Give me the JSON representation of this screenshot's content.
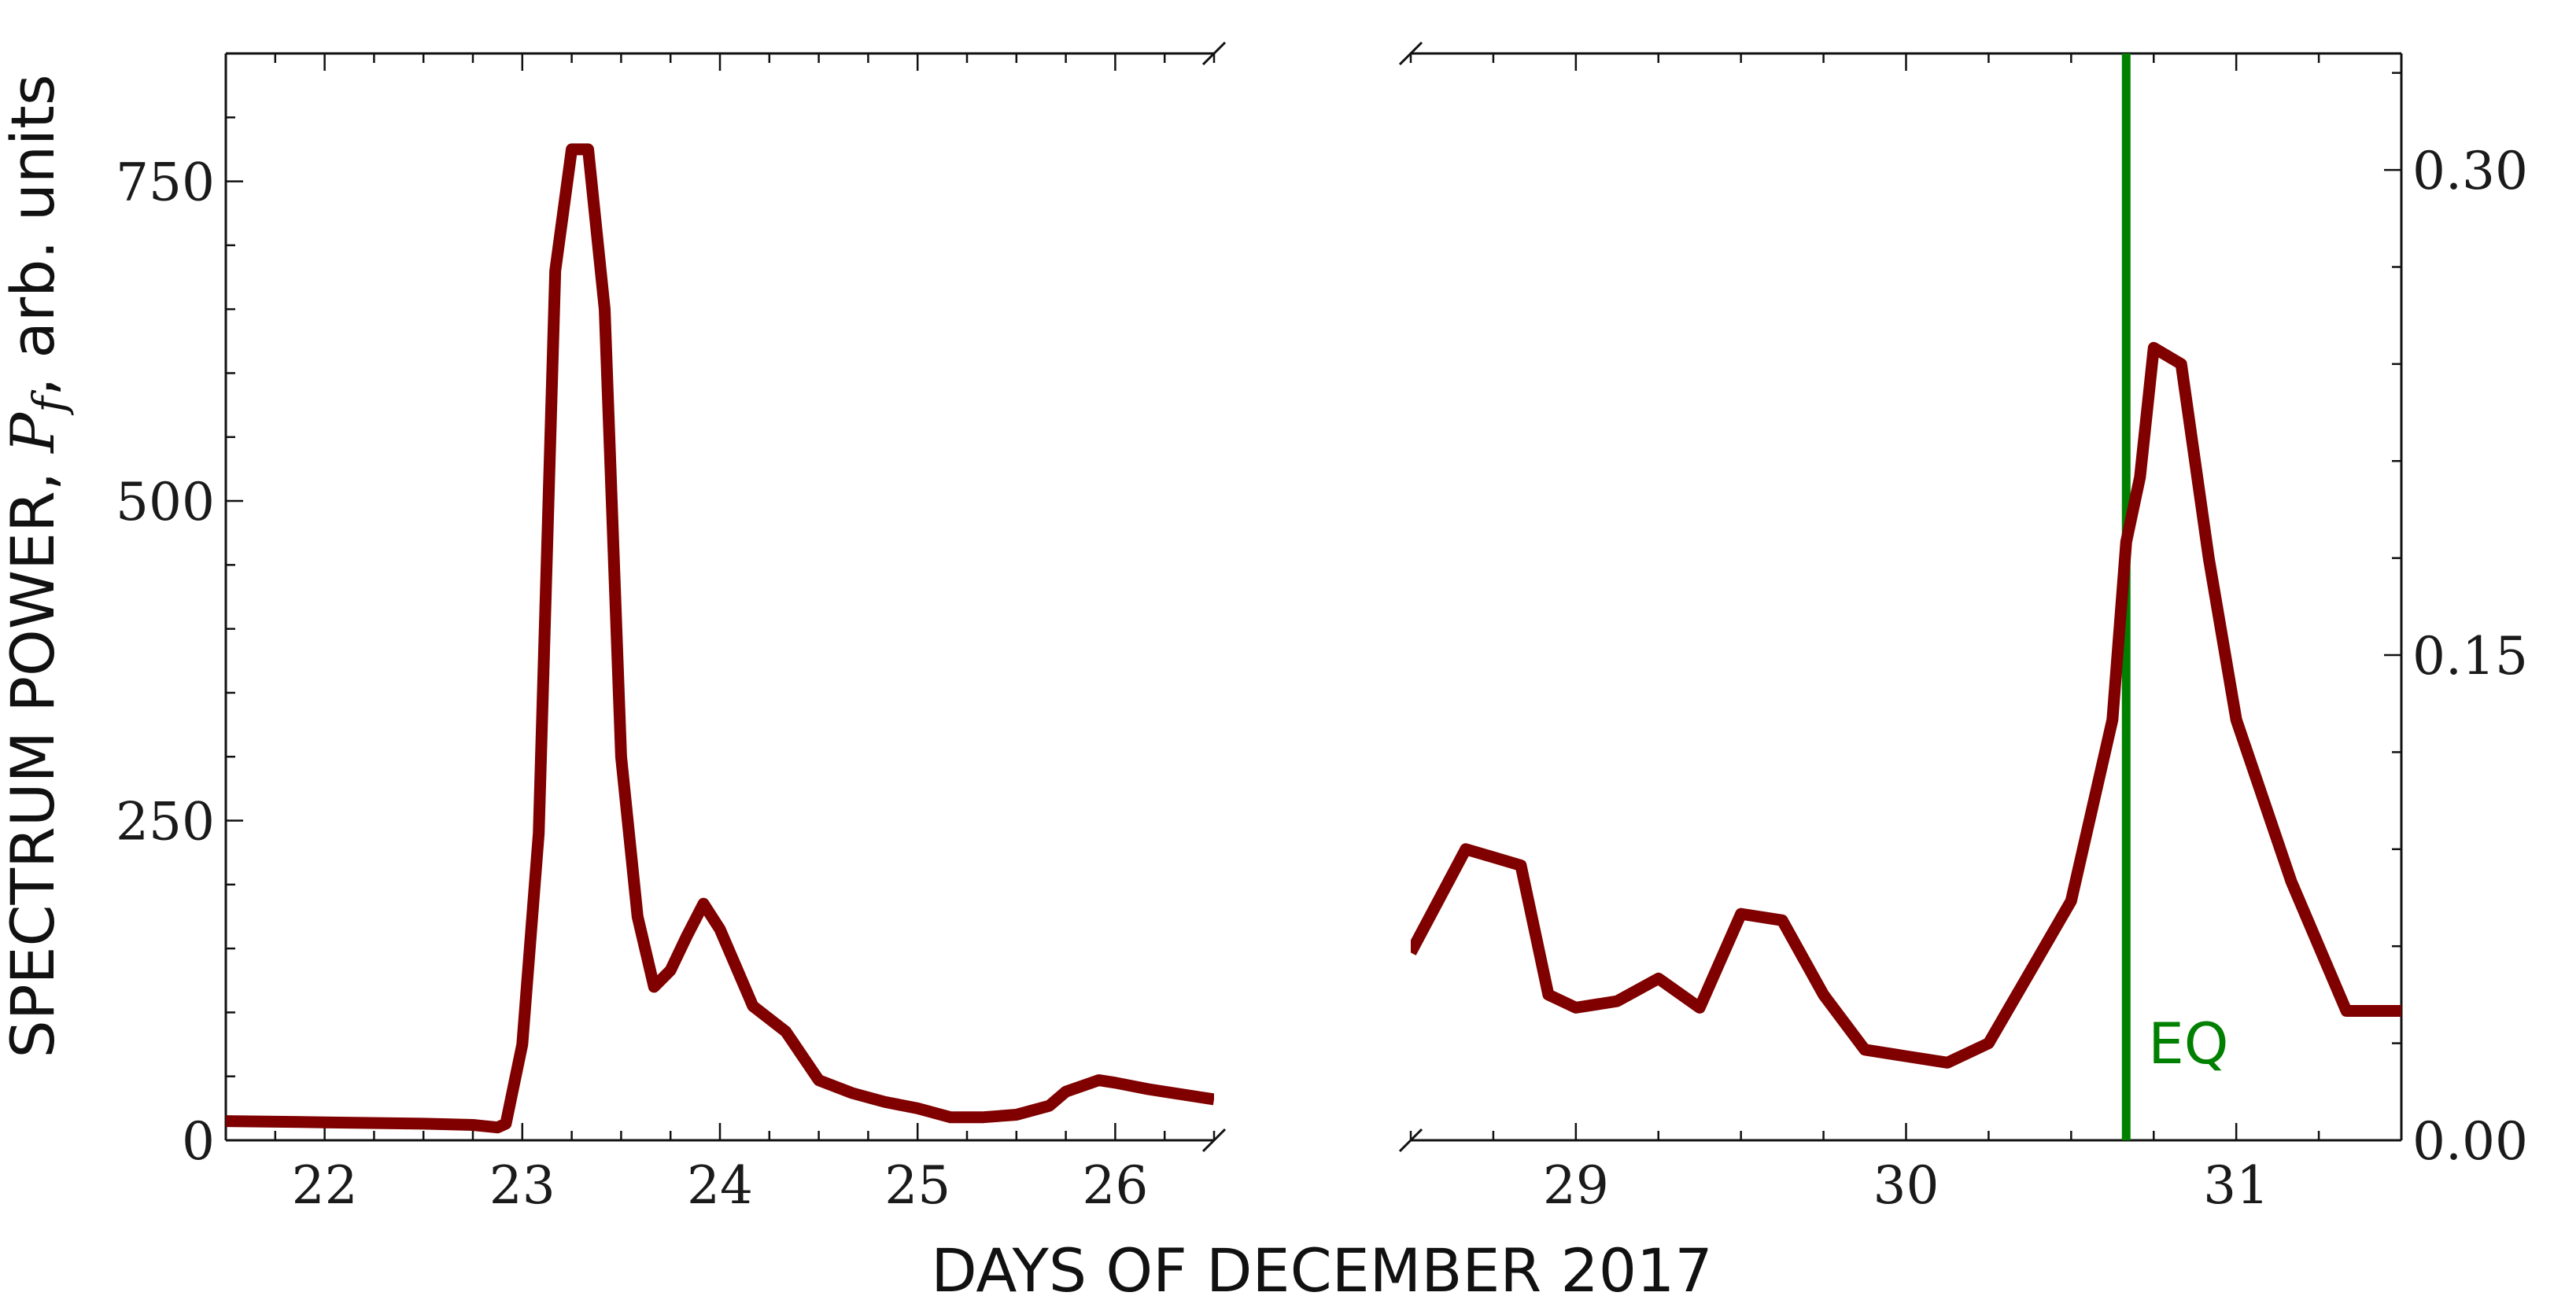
{
  "chart_data": {
    "type": "line",
    "xlabel": "DAYS OF DECEMBER 2017",
    "ylabel": {
      "prefix": "SPECTRUM POWER, ",
      "symbol": "P",
      "subscript": "f",
      "suffix": ", arb. units"
    },
    "line_color": "#800000",
    "annotation": {
      "label": "EQ",
      "x": "2017-12-30T16:00",
      "color": "#008000"
    },
    "panels": [
      {
        "name": "left",
        "y_axis_side": "left",
        "xlim": [
          "2017-12-21T12:00",
          "2017-12-26T12:00"
        ],
        "ylim": [
          0,
          850
        ],
        "x_ticks": [
          "22",
          "23",
          "24",
          "25",
          "26"
        ],
        "y_ticks": [
          "0",
          "250",
          "500",
          "750"
        ],
        "x": [
          "2017-12-21T12:00",
          "2017-12-22T00:00",
          "2017-12-22T12:00",
          "2017-12-22T18:00",
          "2017-12-22T21:00",
          "2017-12-22T22:00",
          "2017-12-23T00:00",
          "2017-12-23T02:00",
          "2017-12-23T04:00",
          "2017-12-23T06:00",
          "2017-12-23T08:00",
          "2017-12-23T10:00",
          "2017-12-23T12:00",
          "2017-12-23T14:00",
          "2017-12-23T16:00",
          "2017-12-23T18:00",
          "2017-12-23T20:00",
          "2017-12-23T22:00",
          "2017-12-24T00:00",
          "2017-12-24T04:00",
          "2017-12-24T08:00",
          "2017-12-24T12:00",
          "2017-12-24T16:00",
          "2017-12-24T20:00",
          "2017-12-25T00:00",
          "2017-12-25T04:00",
          "2017-12-25T08:00",
          "2017-12-25T12:00",
          "2017-12-25T16:00",
          "2017-12-25T18:00",
          "2017-12-25T22:00",
          "2017-12-26T00:00",
          "2017-12-26T04:00",
          "2017-12-26T12:00"
        ],
        "y": [
          15,
          14,
          13,
          12,
          10,
          13,
          75,
          240,
          680,
          775,
          775,
          650,
          300,
          175,
          120,
          133,
          160,
          185,
          165,
          105,
          85,
          47,
          37,
          30,
          25,
          18,
          18,
          20,
          27,
          38,
          47,
          45,
          40,
          32
        ]
      },
      {
        "name": "right",
        "y_axis_side": "right",
        "xlim": [
          "2017-12-28T12:00",
          "2017-12-31T12:00"
        ],
        "ylim": [
          0,
          0.336
        ],
        "x_ticks": [
          "29",
          "30",
          "31"
        ],
        "y_ticks": [
          "0.00",
          "0.15",
          "0.30"
        ],
        "x": [
          "2017-12-28T12:00",
          "2017-12-28T16:00",
          "2017-12-28T20:00",
          "2017-12-28T22:00",
          "2017-12-29T00:00",
          "2017-12-29T03:00",
          "2017-12-29T06:00",
          "2017-12-29T09:00",
          "2017-12-29T12:00",
          "2017-12-29T15:00",
          "2017-12-29T18:00",
          "2017-12-29T21:00",
          "2017-12-30T00:00",
          "2017-12-30T03:00",
          "2017-12-30T06:00",
          "2017-12-30T09:00",
          "2017-12-30T12:00",
          "2017-12-30T15:00",
          "2017-12-30T16:00",
          "2017-12-30T17:00",
          "2017-12-30T18:00",
          "2017-12-30T20:00",
          "2017-12-30T22:00",
          "2017-12-31T00:00",
          "2017-12-31T04:00",
          "2017-12-31T08:00",
          "2017-12-31T12:00"
        ],
        "y": [
          0.058,
          0.09,
          0.085,
          0.045,
          0.041,
          0.043,
          0.05,
          0.041,
          0.07,
          0.068,
          0.045,
          0.028,
          0.026,
          0.024,
          0.03,
          0.052,
          0.074,
          0.13,
          0.185,
          0.205,
          0.245,
          0.24,
          0.18,
          0.13,
          0.08,
          0.04,
          0.04
        ]
      }
    ]
  }
}
